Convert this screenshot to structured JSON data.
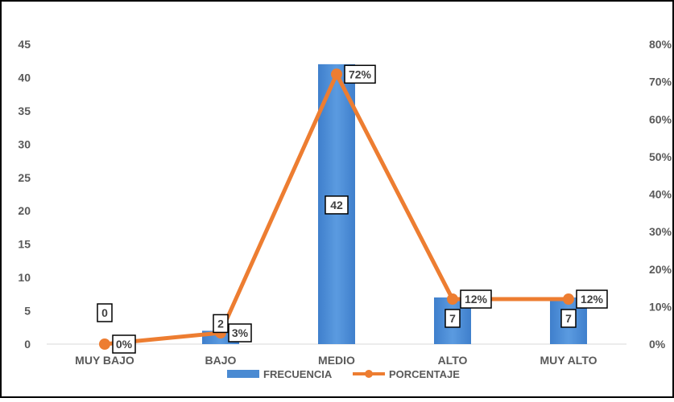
{
  "chart_data": {
    "type": "bar",
    "title": "",
    "xlabel": "",
    "ylabel": "",
    "categories": [
      "MUY BAJO",
      "BAJO",
      "MEDIO",
      "ALTO",
      "MUY ALTO"
    ],
    "ylim": [
      0,
      45
    ],
    "yticks": [
      "0",
      "5",
      "10",
      "15",
      "20",
      "25",
      "30",
      "35",
      "40",
      "45"
    ],
    "y2lim": [
      0,
      0.8
    ],
    "y2ticks": [
      "0%",
      "10%",
      "20%",
      "30%",
      "40%",
      "50%",
      "60%",
      "70%",
      "80%"
    ],
    "grid": false,
    "legend_position": "bottom",
    "series": [
      {
        "name": "FRECUENCIA",
        "type": "bar",
        "axis": "left",
        "color": "#4a8ad2",
        "values": [
          0,
          2,
          42,
          7,
          7
        ],
        "labels": [
          "0",
          "2",
          "42",
          "7",
          "7"
        ]
      },
      {
        "name": "PORCENTAJE",
        "type": "line",
        "axis": "right",
        "color": "#ed7d31",
        "values": [
          0.0,
          0.03,
          0.72,
          0.12,
          0.12
        ],
        "labels": [
          "0%",
          "3%",
          "72%",
          "12%",
          "12%"
        ]
      }
    ]
  }
}
